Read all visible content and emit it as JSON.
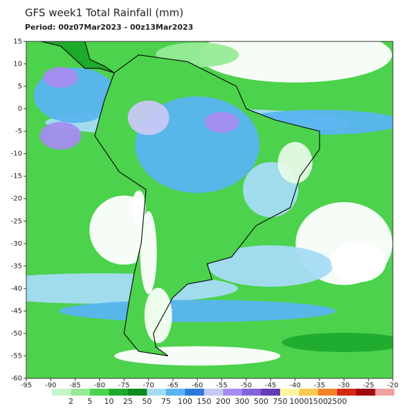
{
  "title": "GFS week1 Total Rainfall (mm)",
  "period": "Period: 00z07Mar2023 - 00z13Mar2023",
  "map": {
    "xlim": [
      -95,
      -20
    ],
    "ylim": [
      -60,
      15
    ],
    "xticks": [
      -95,
      -90,
      -85,
      -80,
      -75,
      -70,
      -65,
      -60,
      -55,
      -50,
      -45,
      -40,
      -35,
      -30,
      -25,
      -20
    ],
    "yticks": [
      15,
      10,
      5,
      0,
      -5,
      -10,
      -15,
      -20,
      -25,
      -30,
      -35,
      -40,
      -45,
      -50,
      -55,
      -60
    ]
  },
  "colorbar": {
    "labels": [
      2,
      5,
      10,
      25,
      50,
      75,
      100,
      150,
      200,
      300,
      500,
      750,
      1000,
      1500,
      2500
    ],
    "colors": [
      "#c8f5c8",
      "#96eb96",
      "#4cd24c",
      "#1eaa2d",
      "#0a8c1e",
      "#a5dcf5",
      "#5ab4f0",
      "#2d78dc",
      "#c8c8f5",
      "#a58cf0",
      "#8264dc",
      "#643cb4",
      "#fff5a0",
      "#fac850",
      "#f08228",
      "#d22814",
      "#a00a0a",
      "#f0a0a0"
    ]
  }
}
